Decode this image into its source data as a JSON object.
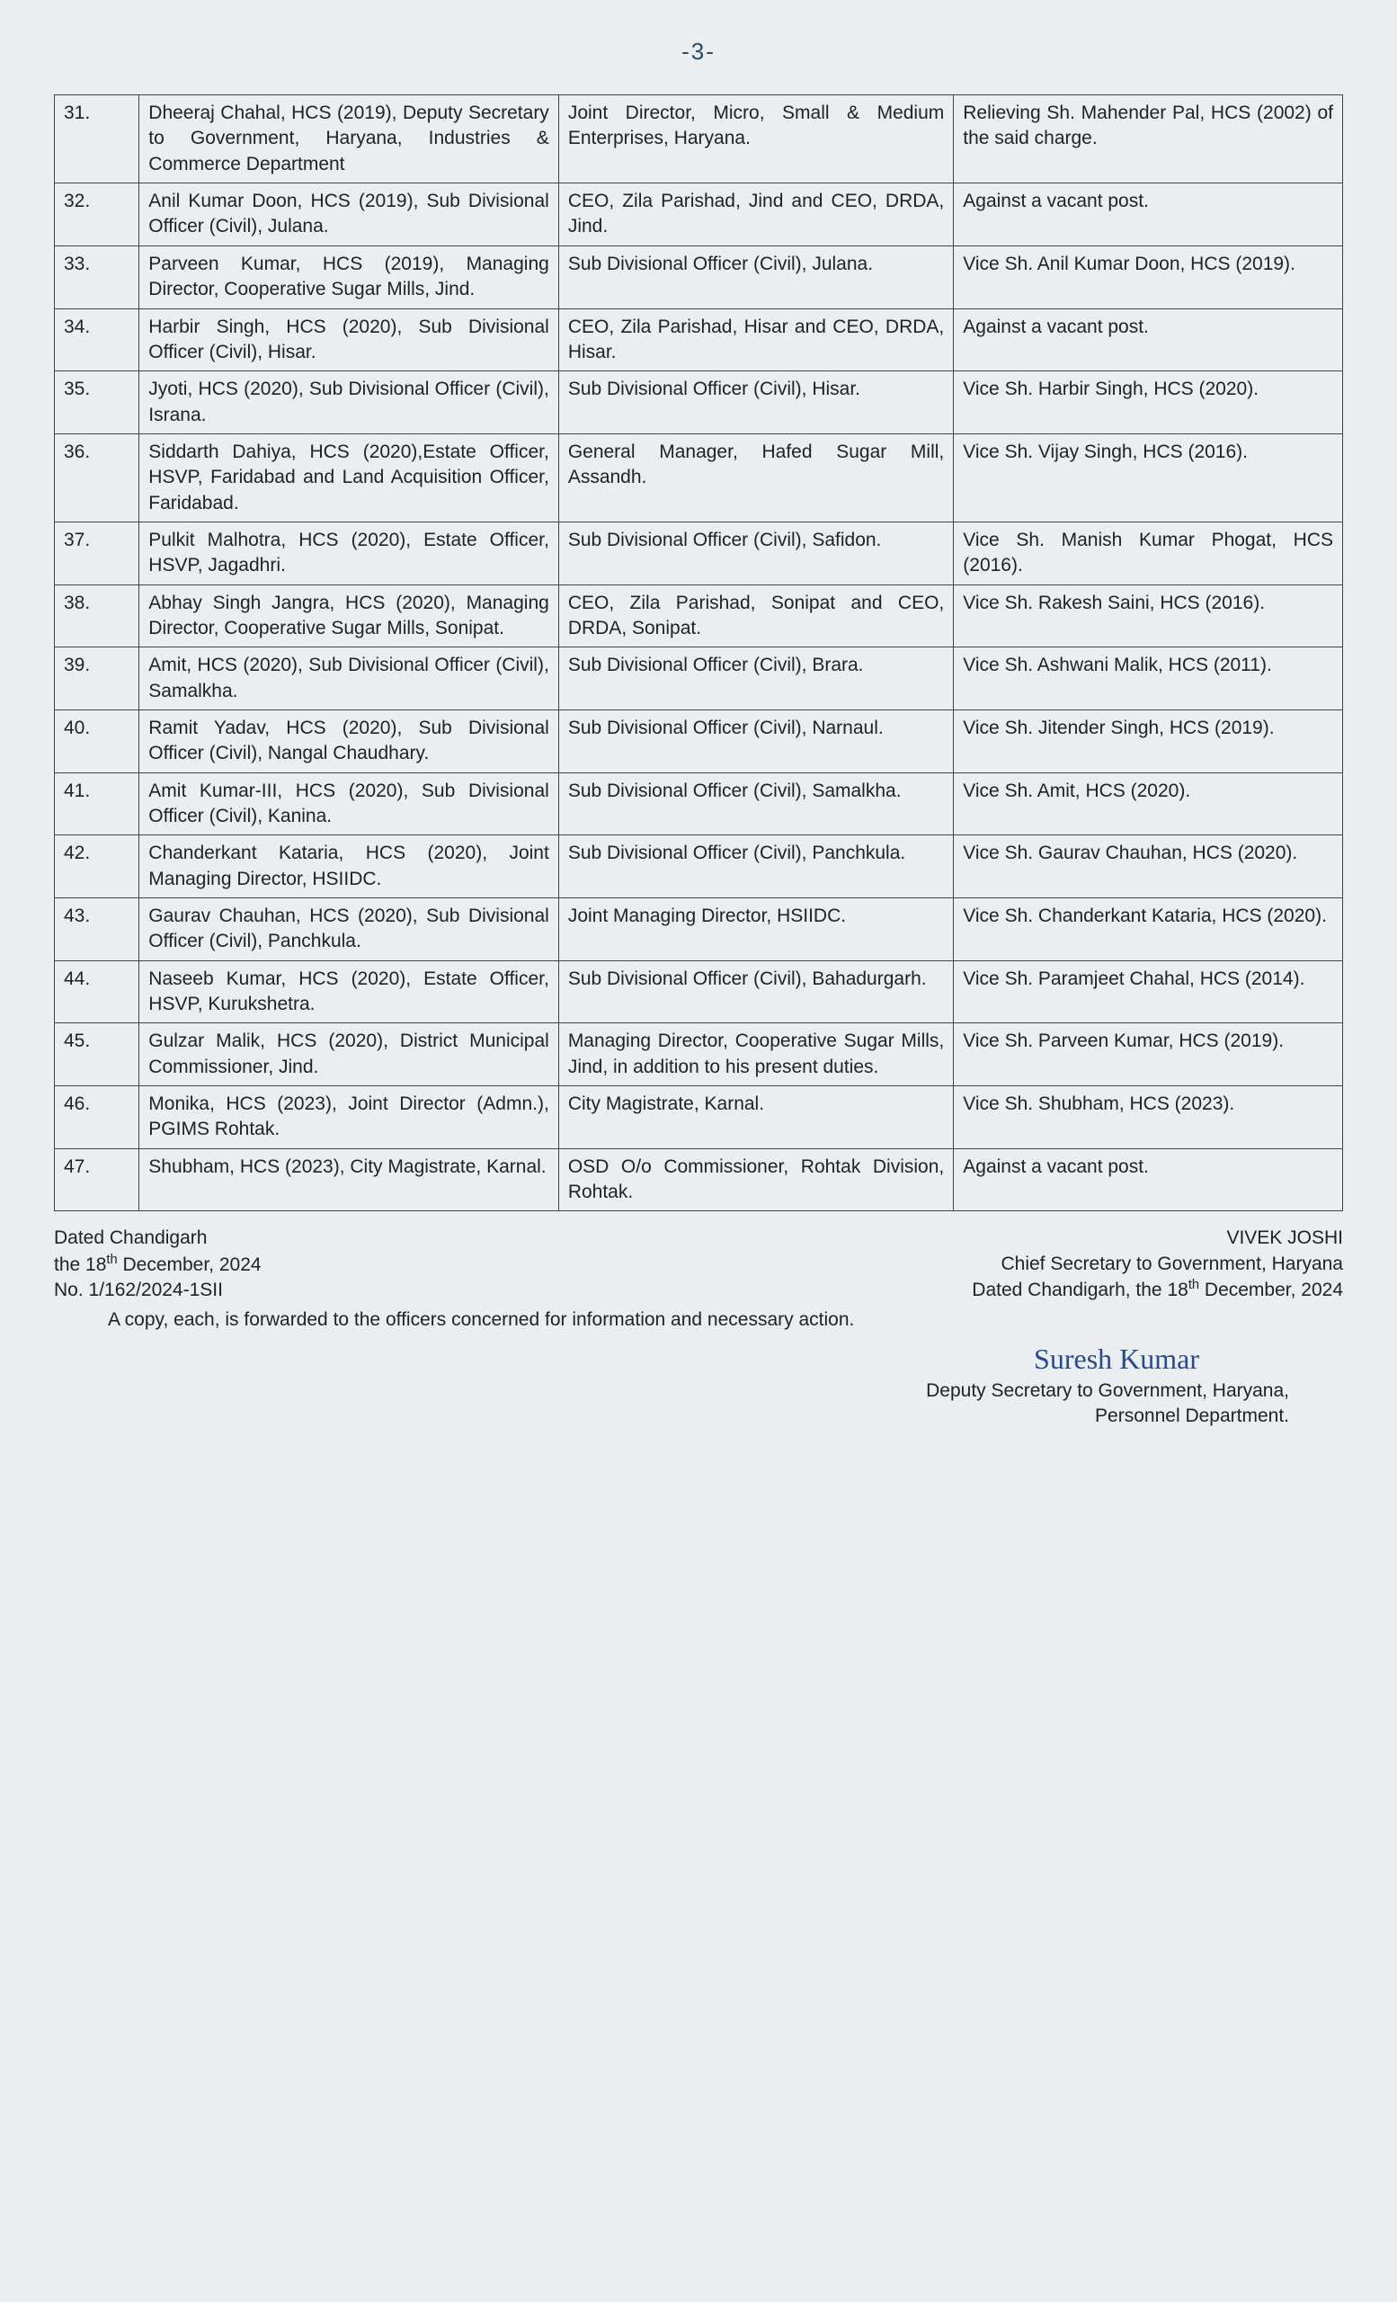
{
  "page_number": "-3-",
  "rows": [
    {
      "sn": "31.",
      "c1": "Dheeraj Chahal, HCS (2019), Deputy Secretary to Government, Haryana, Industries & Commerce Department",
      "c2": "Joint Director, Micro, Small & Medium Enterprises, Haryana.",
      "c3": "Relieving Sh. Mahender Pal, HCS (2002) of the said charge."
    },
    {
      "sn": "32.",
      "c1": "Anil Kumar Doon, HCS (2019), Sub Divisional Officer (Civil), Julana.",
      "c2": "CEO, Zila Parishad, Jind and CEO, DRDA, Jind.",
      "c3": "Against a vacant post."
    },
    {
      "sn": "33.",
      "c1": "Parveen Kumar, HCS (2019), Managing Director, Cooperative Sugar Mills, Jind.",
      "c2": "Sub Divisional Officer (Civil), Julana.",
      "c3": "Vice Sh. Anil Kumar Doon, HCS (2019)."
    },
    {
      "sn": "34.",
      "c1": "Harbir Singh, HCS (2020), Sub Divisional Officer (Civil), Hisar.",
      "c2": "CEO, Zila Parishad, Hisar and CEO, DRDA, Hisar.",
      "c3": "Against a vacant post."
    },
    {
      "sn": "35.",
      "c1": "Jyoti, HCS (2020), Sub Divisional Officer (Civil), Israna.",
      "c2": "Sub Divisional Officer (Civil), Hisar.",
      "c3": "Vice Sh. Harbir Singh, HCS (2020)."
    },
    {
      "sn": "36.",
      "c1": "Siddarth Dahiya, HCS (2020),Estate Officer, HSVP, Faridabad and Land Acquisition Officer, Faridabad.",
      "c2": "General Manager, Hafed Sugar Mill, Assandh.",
      "c3": "Vice Sh. Vijay Singh, HCS (2016)."
    },
    {
      "sn": "37.",
      "c1": "Pulkit Malhotra, HCS (2020), Estate Officer, HSVP, Jagadhri.",
      "c2": "Sub Divisional Officer (Civil), Safidon.",
      "c3": "Vice Sh. Manish Kumar Phogat, HCS (2016)."
    },
    {
      "sn": "38.",
      "c1": "Abhay Singh Jangra, HCS (2020), Managing Director, Cooperative Sugar Mills, Sonipat.",
      "c2": "CEO, Zila Parishad, Sonipat and CEO, DRDA, Sonipat.",
      "c3": "Vice Sh. Rakesh Saini, HCS (2016)."
    },
    {
      "sn": "39.",
      "c1": "Amit, HCS (2020), Sub Divisional Officer (Civil), Samalkha.",
      "c2": "Sub Divisional Officer (Civil), Brara.",
      "c3": "Vice Sh. Ashwani Malik, HCS (2011)."
    },
    {
      "sn": "40.",
      "c1": "Ramit Yadav, HCS (2020), Sub Divisional Officer (Civil), Nangal Chaudhary.",
      "c2": "Sub Divisional Officer (Civil), Narnaul.",
      "c3": "Vice Sh. Jitender Singh, HCS (2019)."
    },
    {
      "sn": "41.",
      "c1": "Amit Kumar-III, HCS (2020), Sub Divisional Officer (Civil), Kanina.",
      "c2": "Sub Divisional Officer (Civil), Samalkha.",
      "c3": "Vice Sh. Amit, HCS (2020)."
    },
    {
      "sn": "42.",
      "c1": "Chanderkant Kataria, HCS (2020), Joint Managing Director, HSIIDC.",
      "c2": "Sub Divisional Officer (Civil), Panchkula.",
      "c3": "Vice Sh. Gaurav Chauhan, HCS (2020)."
    },
    {
      "sn": "43.",
      "c1": "Gaurav Chauhan, HCS (2020), Sub Divisional Officer (Civil), Panchkula.",
      "c2": "Joint Managing Director, HSIIDC.",
      "c3": "Vice Sh. Chanderkant Kataria, HCS (2020)."
    },
    {
      "sn": "44.",
      "c1": "Naseeb Kumar, HCS (2020), Estate Officer, HSVP, Kurukshetra.",
      "c2": "Sub Divisional Officer (Civil), Bahadurgarh.",
      "c3": "Vice Sh. Paramjeet Chahal, HCS (2014)."
    },
    {
      "sn": "45.",
      "c1": "Gulzar Malik, HCS (2020), District Municipal Commissioner, Jind.",
      "c2": "Managing Director, Cooperative Sugar Mills, Jind, in addition to his present duties.",
      "c3": "Vice Sh. Parveen Kumar, HCS (2019)."
    },
    {
      "sn": "46.",
      "c1": "Monika, HCS (2023), Joint Director (Admn.), PGIMS Rohtak.",
      "c2": "City Magistrate, Karnal.",
      "c3": "Vice Sh. Shubham, HCS (2023)."
    },
    {
      "sn": "47.",
      "c1": "Shubham, HCS (2023), City Magistrate, Karnal.",
      "c2": "OSD O/o Commissioner, Rohtak Division, Rohtak.",
      "c3": "Against a vacant post."
    }
  ],
  "footer": {
    "left1": "Dated Chandigarh",
    "left2_pre": "the 18",
    "left2_sup": "th",
    "left2_post": " December, 2024",
    "left3": "No. 1/162/2024-1SII",
    "right1": "VIVEK JOSHI",
    "right2": "Chief Secretary to Government, Haryana",
    "right3_pre": "Dated Chandigarh, the 18",
    "right3_sup": "th",
    "right3_post": " December, 2024",
    "copy": "A copy, each, is forwarded to the officers concerned for information and necessary action.",
    "signature": "Suresh Kumar",
    "deputy1": "Deputy Secretary to Government, Haryana,",
    "deputy2": "Personnel Department."
  }
}
